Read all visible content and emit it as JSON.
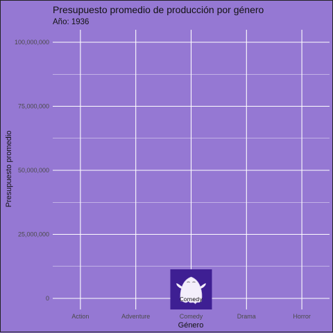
{
  "chart_data": {
    "type": "bar",
    "title": "Presupuesto promedio de producción por género",
    "subtitle": "Año: 1936",
    "xlabel": "Género",
    "ylabel": "Presupuesto promedio",
    "categories": [
      "Action",
      "Adventure",
      "Comedy",
      "Drama",
      "Horror"
    ],
    "values": [
      0,
      0,
      0,
      0,
      0
    ],
    "ylim": [
      0,
      105000000
    ],
    "yticks": [
      0,
      25000000,
      50000000,
      75000000,
      100000000
    ],
    "ytick_labels": [
      "0",
      "25,000,000",
      "50,000,000",
      "75,000,000",
      "100,000,000"
    ],
    "grid": true,
    "background_color": "#9578d3",
    "grid_color": "#ffffff",
    "marker": {
      "category": "Comedy",
      "label": "Comedy",
      "icon": "ghost-icon",
      "badge_color": "#3e1f93"
    }
  }
}
